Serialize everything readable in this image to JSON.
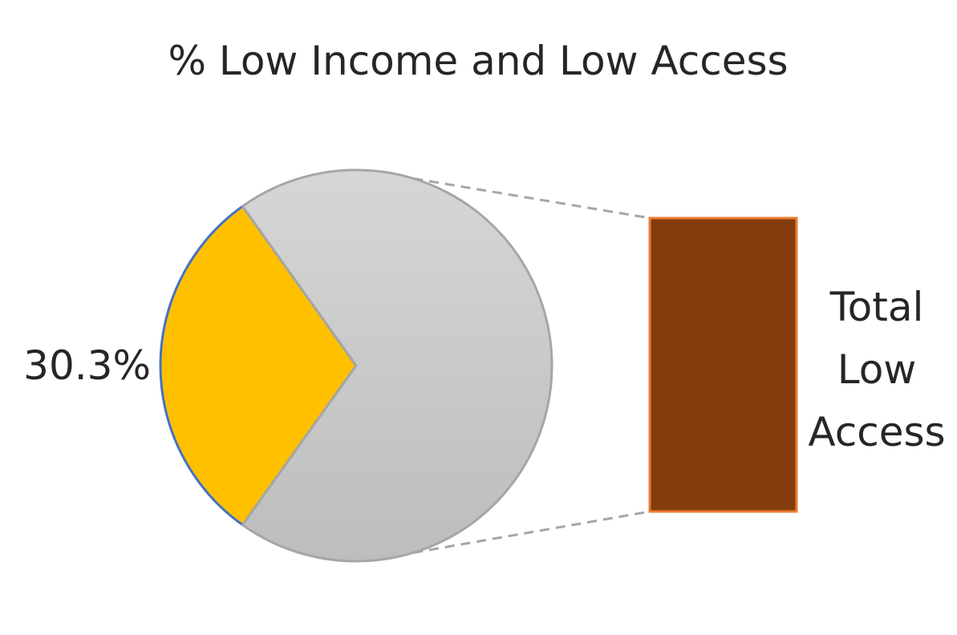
{
  "chart_data": {
    "type": "pie",
    "subtype": "pie-of-bar",
    "title": "% Low Income and Low Access",
    "slices": [
      {
        "value": 30.3,
        "label": "30.3%",
        "color": "#FFC000",
        "edge_color": "#4472C4"
      },
      {
        "value": 69.7,
        "label": "",
        "color": "#C8C8C8",
        "edge_color": "#A6A6A6"
      }
    ],
    "secondary_bar": {
      "label_lines": [
        "Total",
        "Low",
        "Access"
      ],
      "fill": "#843C0C",
      "edge_color": "#ED7D31"
    },
    "connector_color": "#A6A6A6",
    "legend": "none",
    "grid": false
  }
}
